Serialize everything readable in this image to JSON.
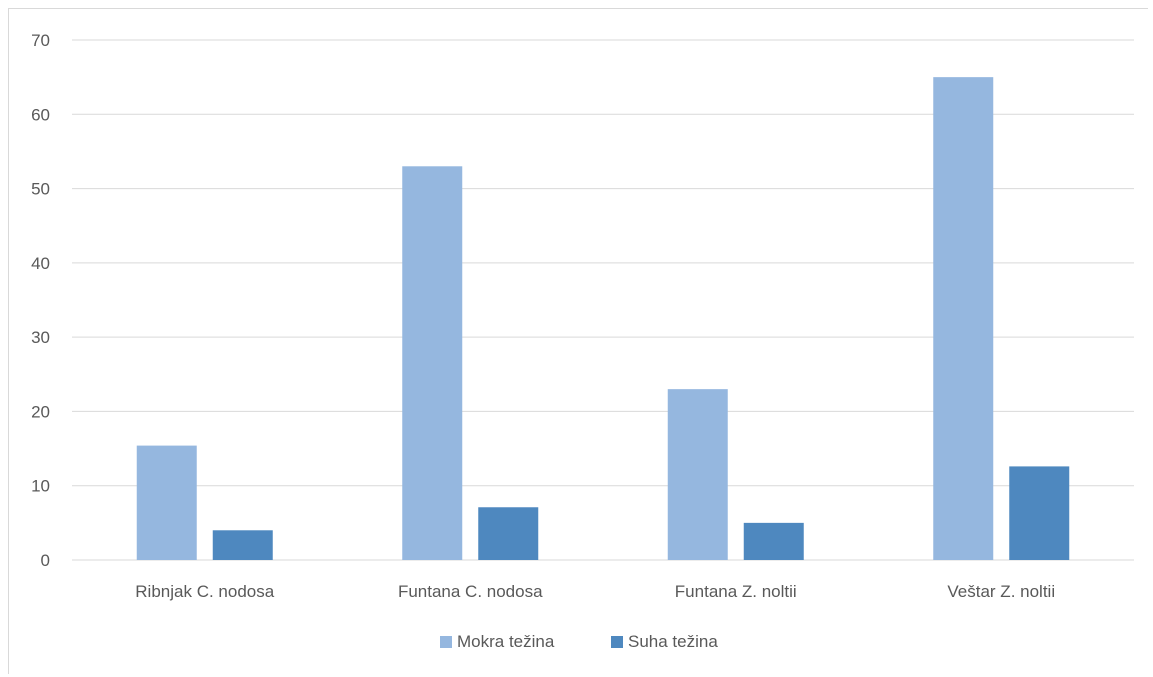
{
  "chart_data": {
    "type": "bar",
    "categories": [
      "Ribnjak C. nodosa",
      "Funtana C. nodosa",
      "Funtana Z. noltii",
      "Veštar Z. noltii"
    ],
    "series": [
      {
        "name": "Mokra težina",
        "values": [
          15.4,
          53.0,
          23.0,
          65.0
        ],
        "color": "#95b7df"
      },
      {
        "name": "Suha težina",
        "values": [
          4.0,
          7.1,
          5.0,
          12.6
        ],
        "color": "#4e88bf"
      }
    ],
    "ylim": [
      0,
      70
    ],
    "yticks": [
      0,
      10,
      20,
      30,
      40,
      50,
      60,
      70
    ],
    "grid": true,
    "legend_position": "bottom",
    "gridline_color": "#d9d9d9",
    "text_color": "#595959"
  }
}
